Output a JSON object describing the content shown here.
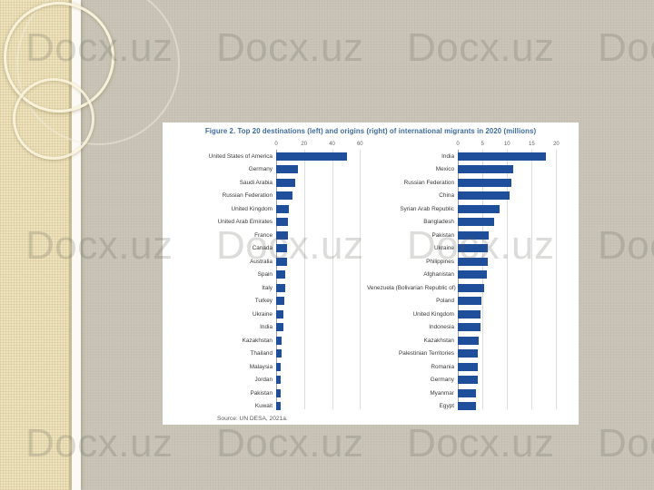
{
  "watermark": {
    "text": "Docx.uz"
  },
  "slide": {
    "figure": {
      "title": "Figure 2. Top 20 destinations (left) and origins (right) of international migrants in 2020 (millions)",
      "source": "Source: UN DESA, 2021a.",
      "bar_color": "#1f4e9b",
      "title_color": "#3f6b9e"
    }
  },
  "chart_data": [
    {
      "type": "bar",
      "orientation": "horizontal",
      "title": "Top 20 destinations of international migrants in 2020 (millions)",
      "categories": [
        "United States of America",
        "Germany",
        "Saudi Arabia",
        "Russian Federation",
        "United Kingdom",
        "United Arab Emirates",
        "France",
        "Canada",
        "Australia",
        "Spain",
        "Italy",
        "Turkey",
        "Ukraine",
        "India",
        "Kazakhstan",
        "Thailand",
        "Malaysia",
        "Jordan",
        "Pakistan",
        "Kuwait"
      ],
      "values": [
        50.6,
        15.8,
        13.5,
        11.6,
        9.4,
        8.7,
        8.5,
        8.0,
        7.7,
        6.8,
        6.4,
        6.1,
        5.0,
        4.9,
        3.7,
        3.6,
        3.5,
        3.5,
        3.3,
        3.1
      ],
      "xlabel": "",
      "ylabel": "",
      "xlim": [
        0,
        60
      ],
      "xticks": [
        0,
        20,
        40,
        60
      ],
      "grid": true,
      "legend": false
    },
    {
      "type": "bar",
      "orientation": "horizontal",
      "title": "Top 20 origins of international migrants in 2020 (millions)",
      "categories": [
        "India",
        "Mexico",
        "Russian Federation",
        "China",
        "Syrian Arab Republic",
        "Bangladesh",
        "Pakistan",
        "Ukraine",
        "Philippines",
        "Afghanistan",
        "Venezuela (Bolivarian Republic of)",
        "Poland",
        "United Kingdom",
        "Indonesia",
        "Kazakhstan",
        "Palestinian Territories",
        "Romania",
        "Germany",
        "Myanmar",
        "Egypt"
      ],
      "values": [
        17.9,
        11.2,
        10.8,
        10.5,
        8.5,
        7.4,
        6.3,
        6.1,
        6.1,
        5.9,
        5.4,
        4.8,
        4.7,
        4.6,
        4.2,
        4.0,
        4.0,
        4.0,
        3.7,
        3.6
      ],
      "xlabel": "",
      "ylabel": "",
      "xlim": [
        0,
        20
      ],
      "xticks": [
        0,
        5,
        10,
        15,
        20
      ],
      "grid": true,
      "legend": false
    }
  ]
}
